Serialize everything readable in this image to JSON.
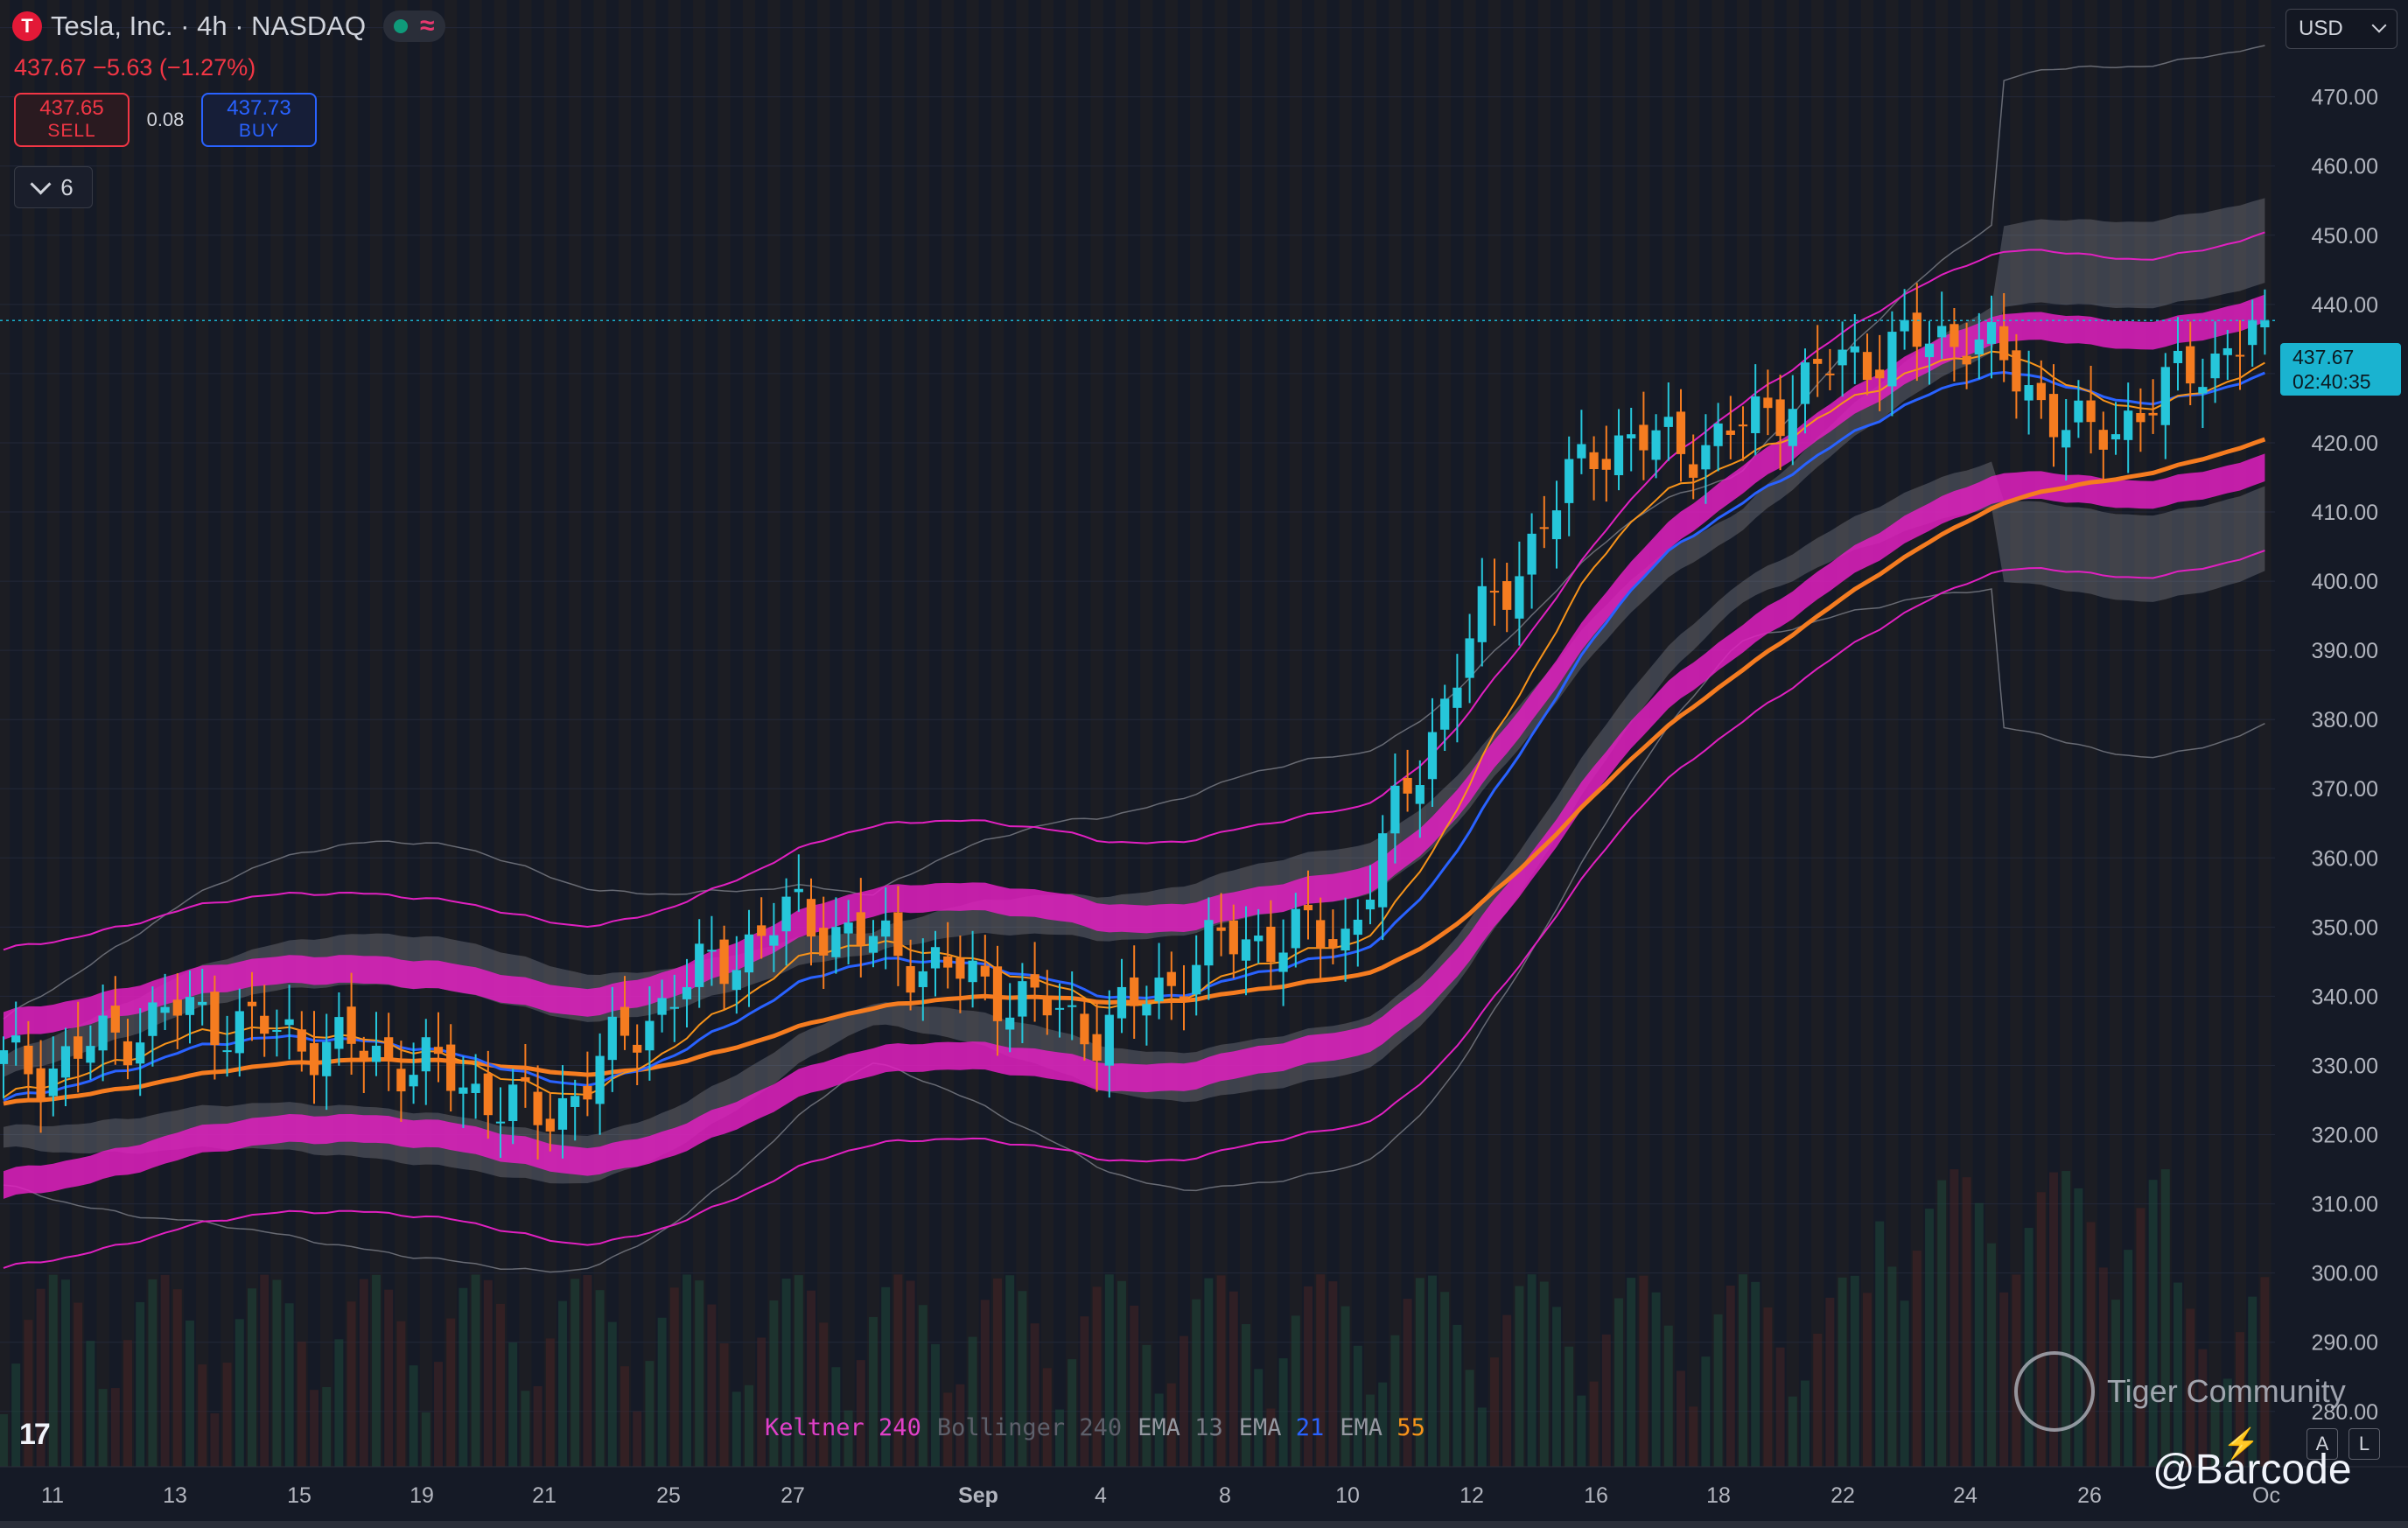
{
  "header": {
    "title": "Tesla, Inc. · 4h · NASDAQ",
    "logo_letter": "T",
    "wave_glyph": "≈",
    "price_change": "437.67  −5.63 (−1.27%)"
  },
  "trade": {
    "sell_price": "437.65",
    "sell_label": "SELL",
    "spread": "0.08",
    "buy_price": "437.73",
    "buy_label": "BUY"
  },
  "indicators_collapse": {
    "count": "6"
  },
  "currency": "USD",
  "last_price": {
    "price": "437.67",
    "countdown": "02:40:35"
  },
  "legend": [
    {
      "name": "Keltner",
      "value": "240",
      "name_color": "#e040c8",
      "value_color": "#e040c8"
    },
    {
      "name": "Bollinger",
      "value": "240",
      "name_color": "#5d606b",
      "value_color": "#5d606b"
    },
    {
      "name": "EMA",
      "value": "13",
      "name_color": "#9598a1",
      "value_color": "#787b86"
    },
    {
      "name": "EMA",
      "value": "21",
      "name_color": "#9598a1",
      "value_color": "#2962ff"
    },
    {
      "name": "EMA",
      "value": "55",
      "name_color": "#9598a1",
      "value_color": "#f7931a"
    }
  ],
  "watermark": {
    "text": "Tiger Community",
    "handle": "@Barcode"
  },
  "scale_buttons": {
    "a": "A",
    "l": "L"
  },
  "colors": {
    "up": "#26c6da",
    "down": "#f57c20",
    "keltner": "#e020c0",
    "bollinger": "#8a8d96",
    "ema13": "#f7931a",
    "ema21": "#2962ff",
    "ema55": "#f57c20",
    "last_price": "#1ab3d0"
  },
  "chart_data": {
    "type": "candlestick",
    "x_tick_labels": [
      "11",
      "13",
      "15",
      "19",
      "21",
      "25",
      "27",
      "Sep",
      "4",
      "8",
      "10",
      "12",
      "16",
      "18",
      "22",
      "24",
      "26",
      "Oc"
    ],
    "y_tick_labels": [
      "480.00",
      "470.00",
      "460.00",
      "450.00",
      "440.00",
      "430.00",
      "420.00",
      "410.00",
      "400.00",
      "390.00",
      "380.00",
      "370.00",
      "360.00",
      "350.00",
      "340.00",
      "330.00",
      "320.00",
      "310.00",
      "300.00",
      "290.00",
      "280.00"
    ],
    "ylim": [
      272,
      484
    ],
    "last_price": 437.67,
    "close_anchors": [
      {
        "label": "11",
        "close": 330
      },
      {
        "label": "13",
        "close": 338
      },
      {
        "label": "15",
        "close": 334
      },
      {
        "label": "19",
        "close": 330
      },
      {
        "label": "21",
        "close": 322
      },
      {
        "label": "25",
        "close": 340
      },
      {
        "label": "27",
        "close": 352
      },
      {
        "label": "Sep",
        "close": 342
      },
      {
        "label": "4",
        "close": 335
      },
      {
        "label": "8",
        "close": 348
      },
      {
        "label": "10",
        "close": 349
      },
      {
        "label": "12",
        "close": 392
      },
      {
        "label": "16",
        "close": 420
      },
      {
        "label": "18",
        "close": 420
      },
      {
        "label": "22",
        "close": 432
      },
      {
        "label": "24",
        "close": 436
      },
      {
        "label": "26",
        "close": 420
      },
      {
        "label": "Oc",
        "close": 437.67
      }
    ],
    "overlays": [
      "Keltner 240",
      "Bollinger 240",
      "EMA 13",
      "EMA 21",
      "EMA 55"
    ],
    "grid": true
  }
}
